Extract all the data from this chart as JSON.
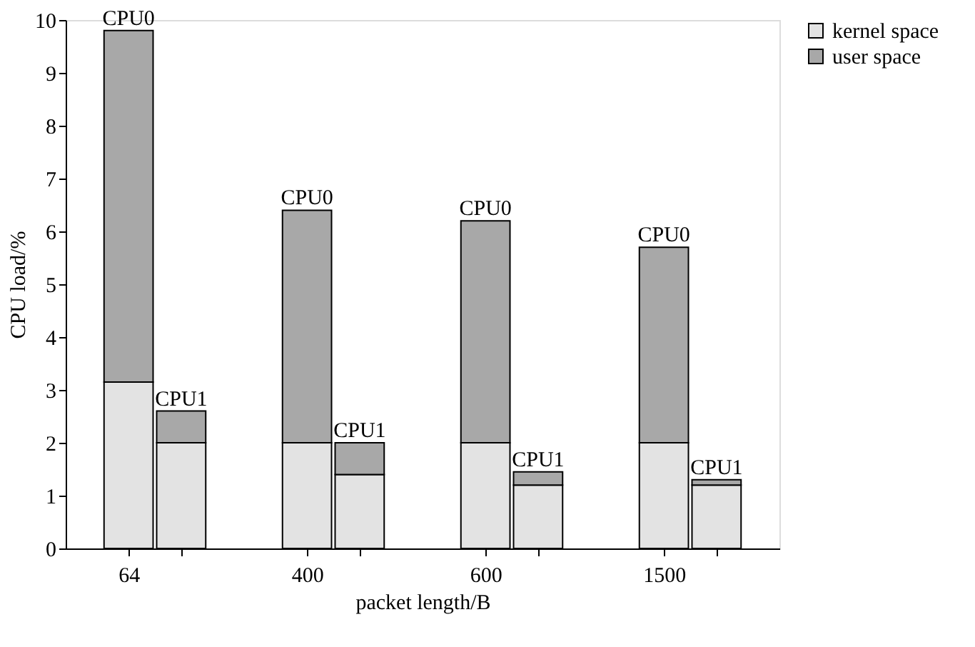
{
  "chart_data": {
    "type": "bar",
    "stacked": true,
    "xlabel": "packet length/B",
    "ylabel": "CPU load/%",
    "categories": [
      "64",
      null,
      "400",
      null,
      "600",
      null,
      "1500",
      null
    ],
    "series": [
      {
        "name": "kernel space",
        "color": "#e3e3e3",
        "values": [
          3.15,
          2.0,
          2.0,
          1.4,
          2.0,
          1.2,
          2.0,
          1.2
        ]
      },
      {
        "name": "user space",
        "color": "#a8a8a8",
        "values": [
          6.65,
          0.6,
          4.4,
          0.6,
          4.2,
          0.25,
          3.7,
          0.1
        ]
      }
    ],
    "annotations": [
      "CPU0",
      "CPU1",
      "CPU0",
      "CPU1",
      "CPU0",
      "CPU1",
      "CPU0",
      "CPU1"
    ],
    "ylim": [
      0,
      10
    ],
    "yticks": [
      0,
      1,
      2,
      3,
      4,
      5,
      6,
      7,
      8,
      9,
      10
    ],
    "grid": false,
    "legend": "right"
  }
}
